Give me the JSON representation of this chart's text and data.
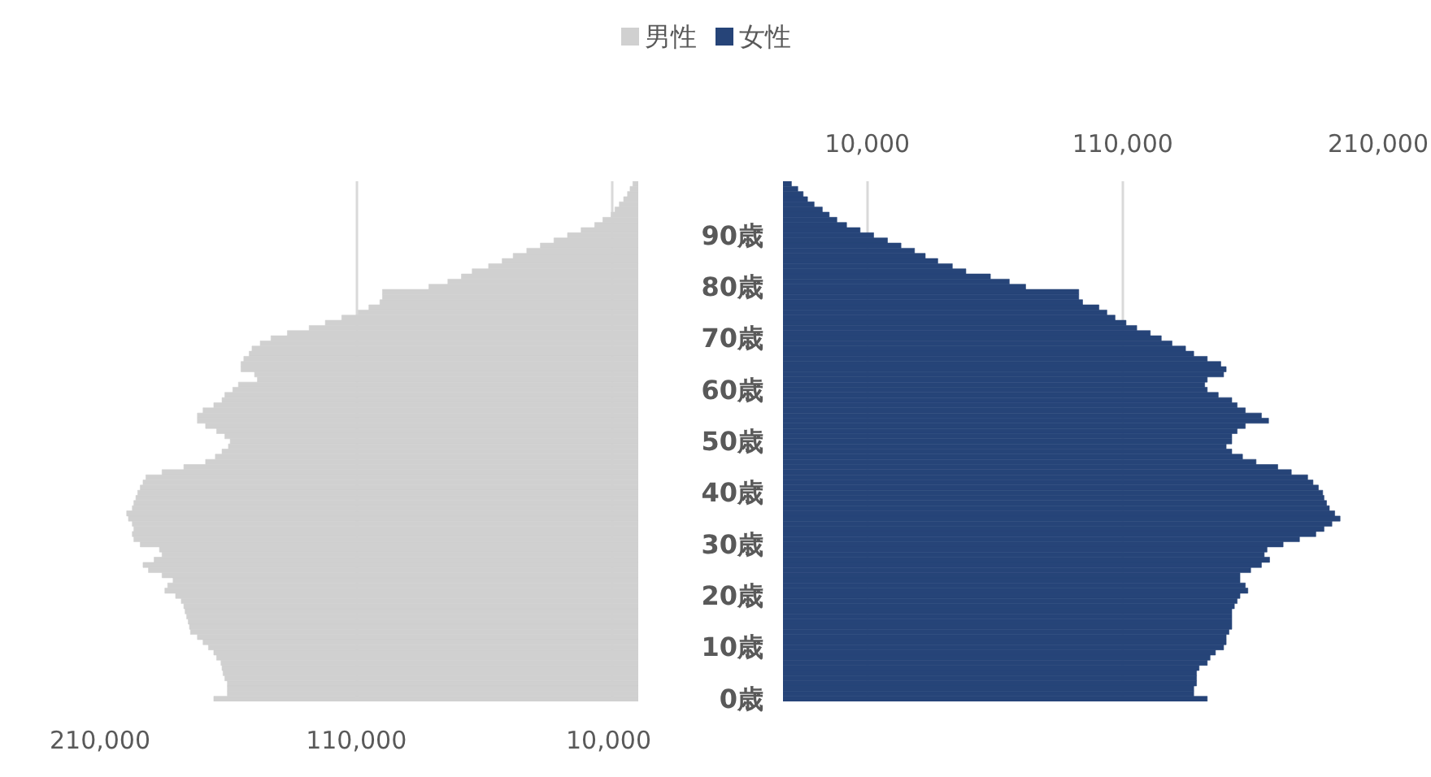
{
  "chart_data": [
    {
      "type": "bar",
      "orientation": "horizontal",
      "categories": [
        null,
        null,
        null,
        null,
        null,
        null,
        null,
        null,
        null,
        null,
        null,
        null,
        null,
        null,
        null,
        null,
        null,
        null,
        null,
        null,
        null,
        null,
        null,
        null,
        null,
        null,
        null,
        null,
        null,
        null,
        null,
        null,
        null,
        null,
        null,
        null,
        null,
        null,
        null,
        null,
        null,
        null,
        null,
        null,
        null,
        null,
        null,
        null,
        null,
        null,
        null,
        null,
        null,
        null,
        null,
        null,
        null,
        null,
        null,
        null,
        null,
        null,
        null,
        null,
        null,
        null,
        null,
        null,
        null,
        null,
        null,
        null,
        null,
        null,
        null,
        null,
        null,
        null,
        null,
        null,
        null,
        null,
        null,
        null,
        null,
        null,
        null,
        null,
        null,
        null,
        null,
        null,
        null,
        null,
        null,
        null,
        null,
        null,
        null,
        null,
        null
      ],
      "series": [
        {
          "name": "男性",
          "color": "#d0d0d0",
          "values": [
            2100,
            3200,
            4200,
            5700,
            7400,
            9100,
            10600,
            13800,
            17000,
            22300,
            27600,
            32900,
            38200,
            43500,
            48800,
            53100,
            58400,
            64800,
            69000,
            74300,
            81700,
            99800,
            99800,
            100800,
            105100,
            109300,
            115700,
            122100,
            128400,
            136900,
            143300,
            147500,
            150700,
            151800,
            153900,
            155000,
            155000,
            149700,
            148600,
            156000,
            158200,
            161300,
            162400,
            165600,
            169800,
            172000,
            172000,
            168800,
            164500,
            161300,
            159200,
            159900,
            162400,
            165000,
            168800,
            177300,
            185800,
            192100,
            193200,
            194300,
            195300,
            196000,
            196800,
            197400,
            199600,
            198900,
            197400,
            196800,
            197400,
            196800,
            194300,
            186800,
            185800,
            188900,
            193200,
            191100,
            185800,
            181500,
            183600,
            184700,
            180500,
            178300,
            177300,
            176800,
            176200,
            175600,
            175100,
            174700,
            172000,
            169800,
            167700,
            165600,
            164500,
            162800,
            162400,
            162000,
            161300,
            160300,
            160300,
            160300,
            165600
          ]
        }
      ],
      "xlim": [
        210000,
        0
      ],
      "xticks": [
        {
          "value": 210000,
          "label": "210,000"
        },
        {
          "value": 110000,
          "label": "110,000"
        },
        {
          "value": 10000,
          "label": "10,000"
        }
      ],
      "grid": "x",
      "legend": "top",
      "tick_labels": "x"
    },
    {
      "type": "bar",
      "orientation": "horizontal",
      "categories": [
        null,
        null,
        null,
        null,
        null,
        null,
        null,
        null,
        null,
        null,
        "90歳",
        null,
        null,
        null,
        null,
        null,
        null,
        null,
        null,
        null,
        "80歳",
        null,
        null,
        null,
        null,
        null,
        null,
        null,
        null,
        null,
        "70歳",
        null,
        null,
        null,
        null,
        null,
        null,
        null,
        null,
        null,
        "60歳",
        null,
        null,
        null,
        null,
        null,
        null,
        null,
        null,
        null,
        "50歳",
        null,
        null,
        null,
        null,
        null,
        null,
        null,
        null,
        null,
        "40歳",
        null,
        null,
        null,
        null,
        null,
        null,
        null,
        null,
        null,
        "30歳",
        null,
        null,
        null,
        null,
        null,
        null,
        null,
        null,
        null,
        "20歳",
        null,
        null,
        null,
        null,
        null,
        null,
        null,
        null,
        null,
        "10歳",
        null,
        null,
        null,
        null,
        null,
        null,
        null,
        null,
        null,
        "0歳"
      ],
      "series": [
        {
          "name": "女性",
          "color": "#264478",
          "base": [
            -23000,
            -23000,
            -23000,
            -23000,
            -23000,
            -23000,
            -23000,
            -23000,
            -23000,
            -23000,
            -23000,
            -23000,
            -23000,
            -23000,
            -23000,
            -23000,
            -23000,
            -23000,
            -23000,
            -23000,
            -23000,
            -23000,
            -23000,
            -23000,
            -23000,
            -23000,
            -23000,
            -23000,
            -23000,
            -23000,
            -23000,
            -23000,
            -23000,
            -23000,
            -23000,
            -23000,
            -23000,
            -23000,
            -23000,
            -23000,
            -23000,
            -23000,
            -23000,
            -23000,
            -23000,
            -23000,
            -23000,
            -23000,
            -23000,
            -23000,
            -23000,
            -23000,
            -23000,
            -23000,
            -23000,
            -23000,
            -23000,
            -23000,
            -23000,
            -23000,
            -23000,
            -23000,
            -23000,
            -23000,
            -23000,
            -23000,
            -23000,
            -23000,
            -23000,
            -23000,
            -23000,
            -23000,
            -23000,
            -23000,
            -23000,
            -23000,
            -23000,
            -23000,
            -23000,
            -23000,
            -23000,
            -23000,
            -23000,
            -23000,
            -23000,
            -23000,
            -23000,
            -23000,
            -23000,
            -23000,
            -23000,
            -23000,
            -23000,
            -23000,
            -23000,
            -23000,
            -23000,
            -23000,
            -23000,
            -23000,
            -23000
          ],
          "values": [
            3300,
            5800,
            7900,
            9600,
            12200,
            15400,
            18100,
            21100,
            24900,
            30200,
            35500,
            40900,
            46200,
            51500,
            55700,
            60600,
            66300,
            71600,
            81200,
            88600,
            95000,
            115800,
            115800,
            117300,
            123700,
            126800,
            130000,
            134300,
            138500,
            143800,
            148100,
            152300,
            157600,
            160800,
            166100,
            171400,
            173500,
            172500,
            166100,
            165100,
            166100,
            170400,
            175700,
            177800,
            181000,
            187300,
            190100,
            181000,
            177800,
            175700,
            175700,
            173500,
            175700,
            179900,
            185200,
            193700,
            199000,
            205400,
            207500,
            209600,
            211300,
            211800,
            212800,
            213900,
            216000,
            218100,
            214900,
            211800,
            208600,
            202200,
            195800,
            189500,
            188400,
            190500,
            187300,
            183100,
            178900,
            178900,
            181000,
            182000,
            178900,
            177800,
            176700,
            175700,
            175700,
            175700,
            175700,
            174600,
            173500,
            173500,
            172500,
            169300,
            167200,
            166100,
            162900,
            161900,
            161900,
            161900,
            160800,
            160800,
            166100
          ]
        }
      ],
      "xlim": [
        -23000,
        210000
      ],
      "xticks": [
        {
          "value": 10000,
          "label": "10,000"
        },
        {
          "value": 110000,
          "label": "110,000"
        },
        {
          "value": 210000,
          "label": "210,000"
        }
      ],
      "grid": "x",
      "legend": "top"
    }
  ]
}
